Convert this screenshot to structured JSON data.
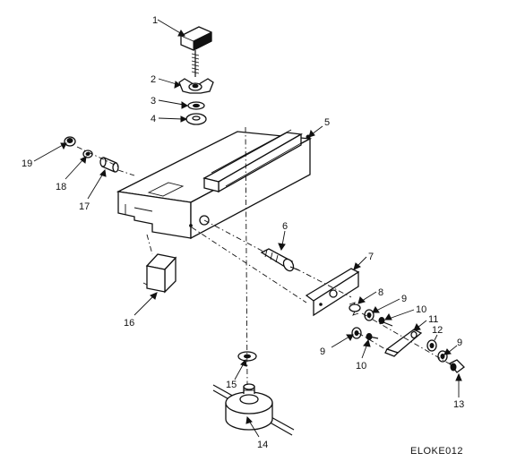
{
  "figure": {
    "drawing_code": "ELOKE012",
    "callouts": [
      "1",
      "2",
      "3",
      "4",
      "5",
      "6",
      "7",
      "8",
      "9",
      "10",
      "11",
      "12",
      "9",
      "13",
      "14",
      "15",
      "16",
      "17",
      "18",
      "19",
      "9",
      "10"
    ]
  }
}
